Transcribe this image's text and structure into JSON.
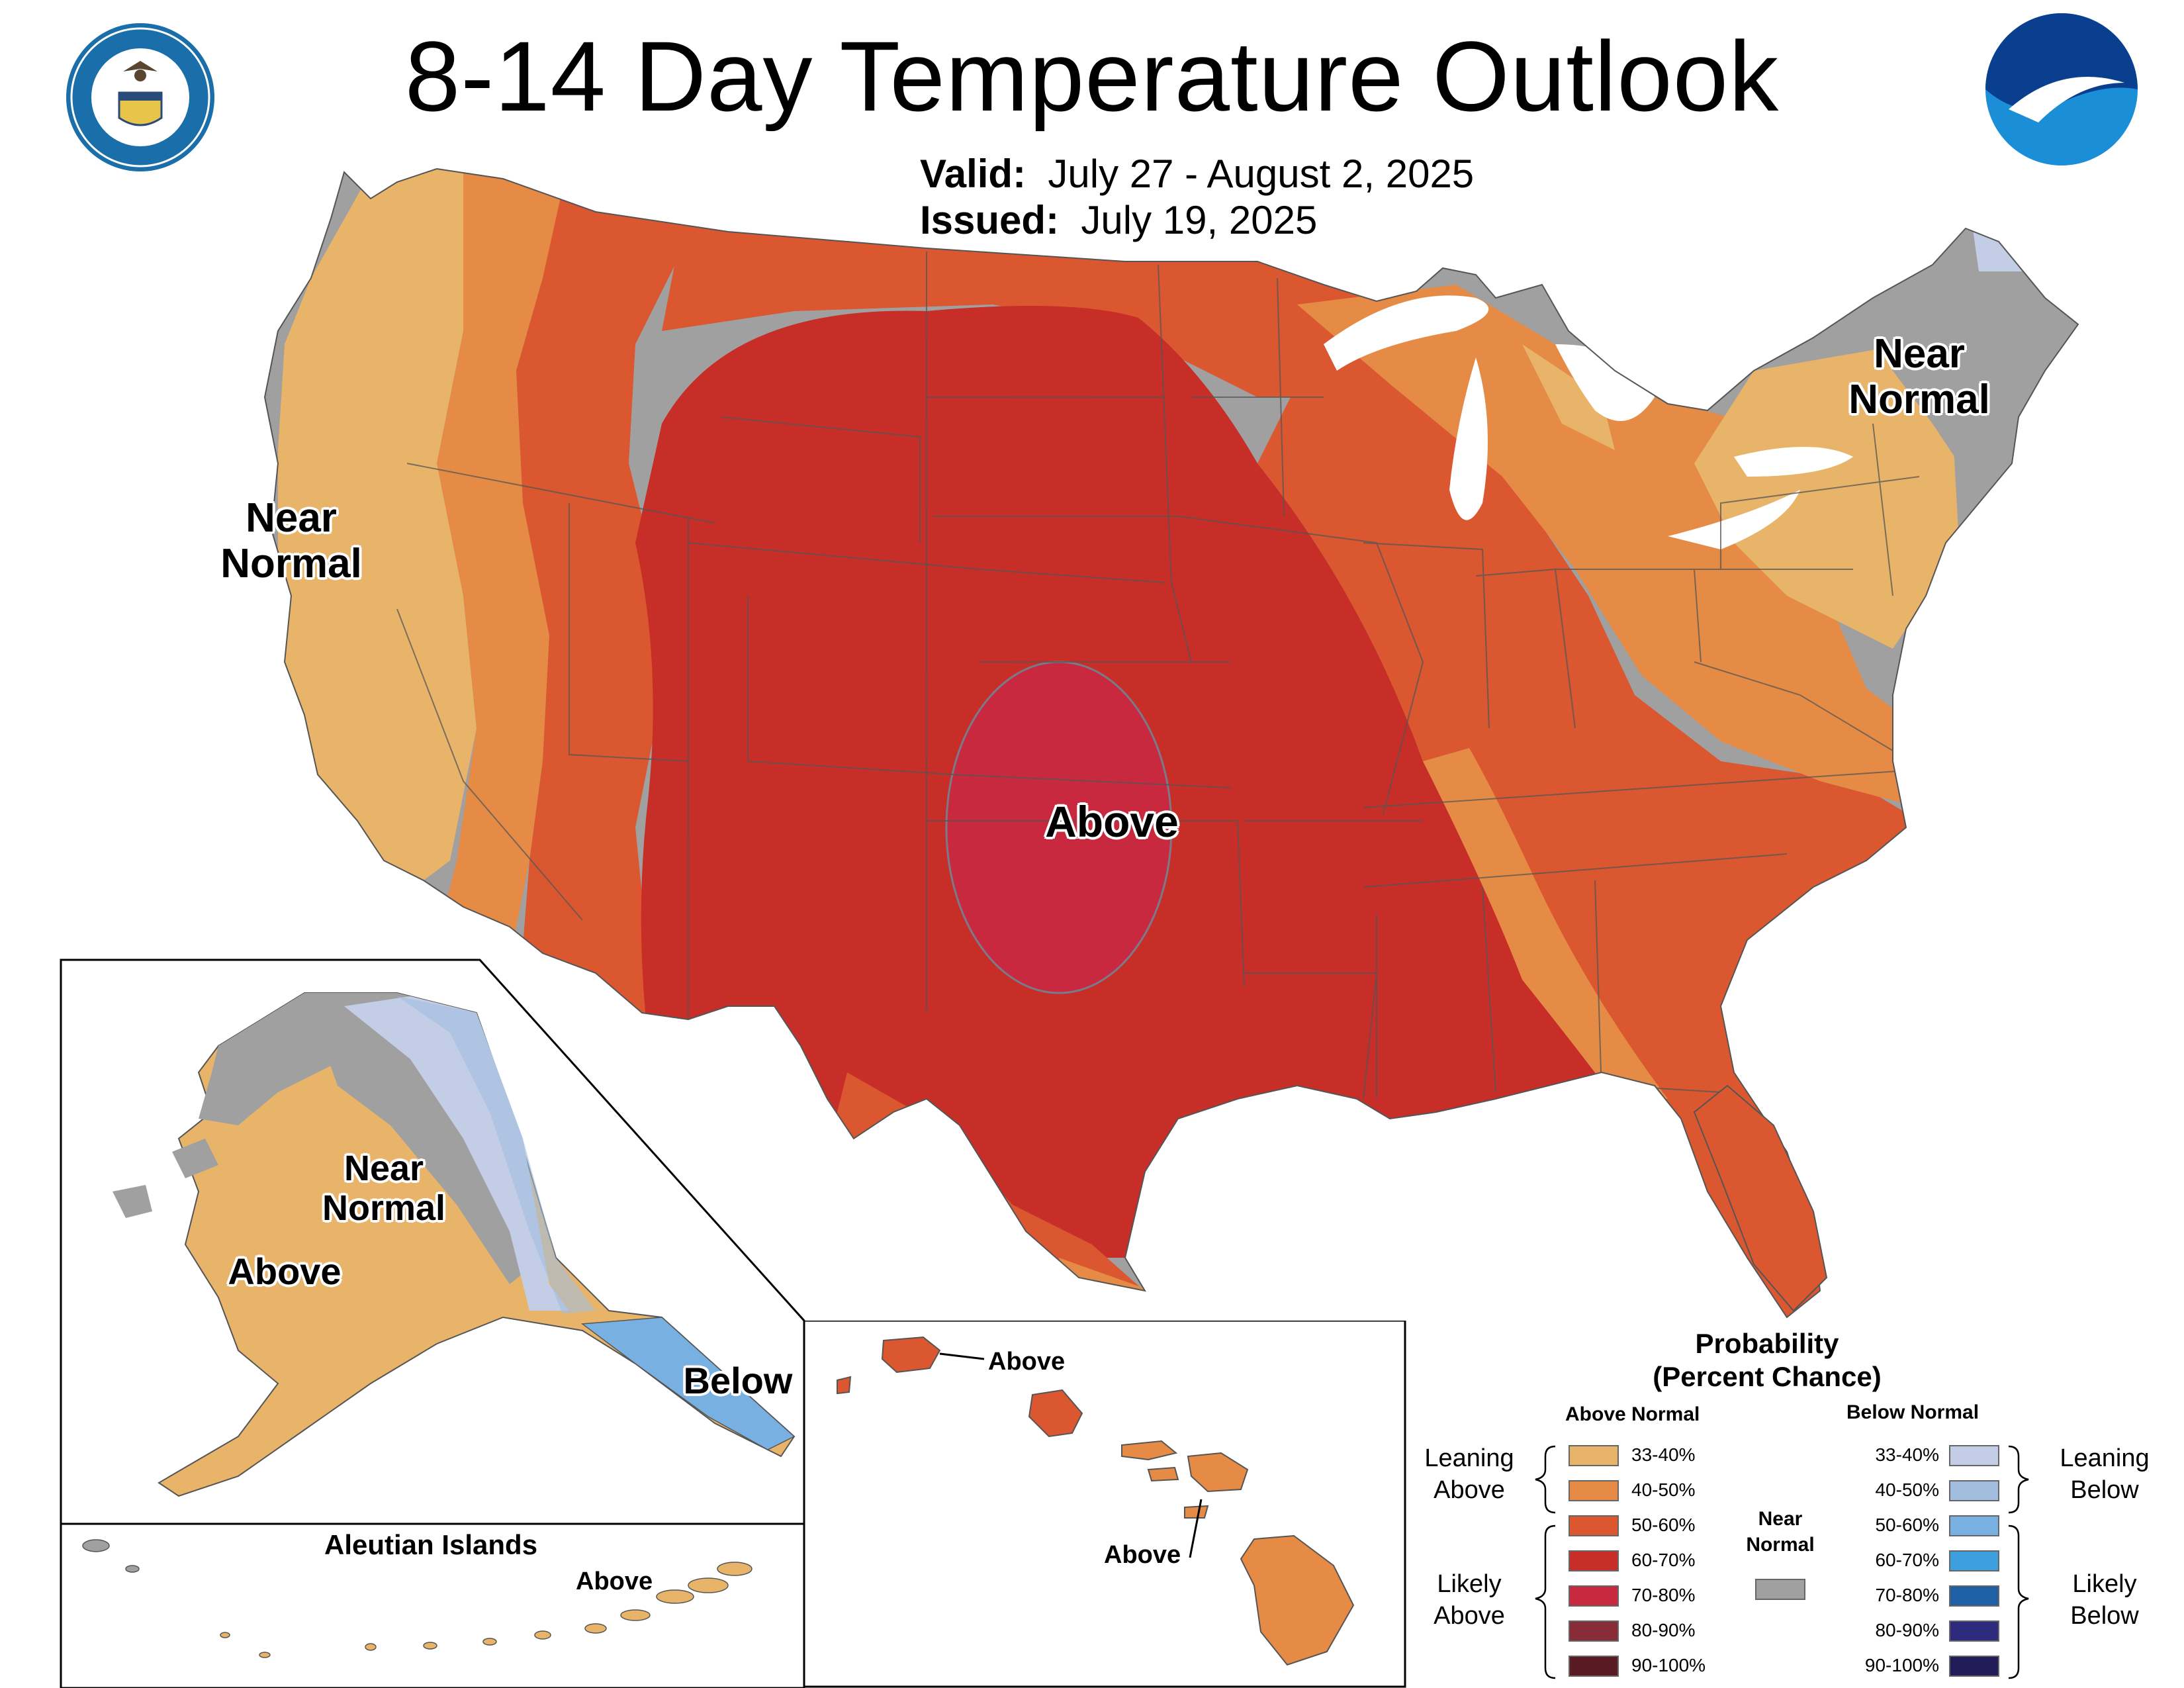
{
  "title": "8-14 Day Temperature Outlook",
  "valid_label": "Valid:",
  "valid_value": "July 27 - August 2, 2025",
  "issued_label": "Issued:",
  "issued_value": "July 19, 2025",
  "logos": {
    "commerce_seal": "department-of-commerce-seal",
    "noaa": "noaa-logo"
  },
  "map_labels": {
    "west": "Near\nNormal",
    "northeast": "Near\nNormal",
    "central": "Above",
    "alaska_near": "Near\nNormal",
    "alaska_above": "Above",
    "alaska_below": "Below",
    "aleutian_title": "Aleutian Islands",
    "aleutian_above": "Above",
    "hawaii_above_1": "Above",
    "hawaii_above_2": "Above"
  },
  "legend": {
    "title": "Probability\n(Percent Chance)",
    "above_header": "Above Normal",
    "below_header": "Below Normal",
    "near_label": "Near\nNormal",
    "leaning_above": "Leaning\nAbove",
    "likely_above": "Likely\nAbove",
    "leaning_below": "Leaning\nBelow",
    "likely_below": "Likely\nBelow",
    "above_bins": [
      {
        "label": "33-40%",
        "color": "#E8B46A"
      },
      {
        "label": "40-50%",
        "color": "#E58B45"
      },
      {
        "label": "50-60%",
        "color": "#DA5730"
      },
      {
        "label": "60-70%",
        "color": "#C72E28"
      },
      {
        "label": "70-80%",
        "color": "#C8293F"
      },
      {
        "label": "80-90%",
        "color": "#872D3A"
      },
      {
        "label": "90-100%",
        "color": "#5A1A22"
      }
    ],
    "below_bins": [
      {
        "label": "33-40%",
        "color": "#C3CDE6"
      },
      {
        "label": "40-50%",
        "color": "#A2BEDF"
      },
      {
        "label": "50-60%",
        "color": "#78B1E1"
      },
      {
        "label": "60-70%",
        "color": "#3E9FDF"
      },
      {
        "label": "70-80%",
        "color": "#1D60A4"
      },
      {
        "label": "80-90%",
        "color": "#2E2A7C"
      },
      {
        "label": "90-100%",
        "color": "#221C59"
      }
    ],
    "near_color": "#A0A0A0"
  }
}
